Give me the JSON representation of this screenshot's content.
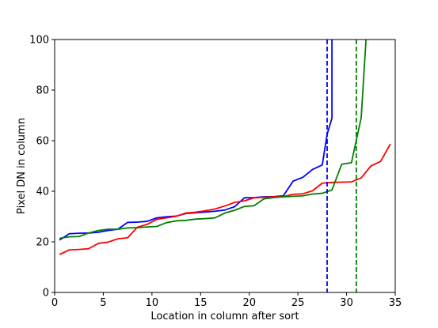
{
  "chart_data": {
    "type": "line",
    "xlabel": "Location in column after sort",
    "ylabel": "Pixel DN in column",
    "xlim": [
      0,
      35
    ],
    "ylim": [
      0,
      100
    ],
    "xticks": [
      0,
      5,
      10,
      15,
      20,
      25,
      30,
      35
    ],
    "yticks": [
      0,
      20,
      40,
      60,
      80,
      100
    ],
    "grid": false,
    "series": [
      {
        "color": "#0000ff",
        "x": [
          0.5,
          1.5,
          2.5,
          3.5,
          4.5,
          5.5,
          6.5,
          7.5,
          8.5,
          9.5,
          10.5,
          11.5,
          12.5,
          13.5,
          14.5,
          15.5,
          16.5,
          17.5,
          18.5,
          19.5,
          20.5,
          21.5,
          22.5,
          23.5,
          24.5,
          25.5,
          26.5,
          27.5,
          28.0,
          28.5,
          28.5
        ],
        "y": [
          20.7,
          23.2,
          23.4,
          23.5,
          23.8,
          24.5,
          25.0,
          27.7,
          27.8,
          28.1,
          29.5,
          29.9,
          30.2,
          31.2,
          31.5,
          31.8,
          32.1,
          32.6,
          33.9,
          37.4,
          37.5,
          37.8,
          37.9,
          38.2,
          44.0,
          45.5,
          48.6,
          50.4,
          62.5,
          69.0,
          100
        ]
      },
      {
        "color": "#ff0000",
        "x": [
          0.5,
          1.5,
          2.5,
          3.5,
          4.5,
          5.5,
          6.5,
          7.5,
          8.5,
          9.5,
          10.5,
          11.5,
          12.5,
          13.5,
          14.5,
          15.5,
          16.5,
          17.5,
          18.5,
          19.5,
          20.5,
          21.5,
          22.5,
          23.5,
          24.5,
          25.5,
          26.5,
          27.5,
          28.5,
          29.5,
          30.5,
          31.5,
          32.5,
          33.5,
          34.5
        ],
        "y": [
          15.0,
          16.8,
          17.0,
          17.3,
          19.4,
          19.9,
          21.2,
          21.6,
          25.8,
          26.9,
          28.9,
          29.5,
          30.1,
          31.4,
          31.7,
          32.3,
          33.0,
          34.2,
          35.6,
          36.2,
          37.4,
          37.6,
          37.8,
          37.9,
          38.8,
          39.0,
          40.2,
          43.2,
          43.5,
          43.6,
          43.7,
          45.3,
          50.0,
          51.8,
          58.7
        ]
      },
      {
        "color": "#008000",
        "x": [
          0.5,
          1.5,
          2.5,
          3.5,
          4.5,
          5.5,
          6.5,
          7.5,
          8.5,
          9.5,
          10.5,
          11.5,
          12.5,
          13.5,
          14.5,
          15.5,
          16.5,
          17.5,
          18.5,
          19.5,
          20.5,
          21.5,
          22.5,
          23.5,
          24.5,
          25.5,
          26.5,
          27.5,
          28.5,
          29.5,
          30.5,
          31.5,
          32.0
        ],
        "y": [
          21.4,
          22.0,
          22.1,
          23.5,
          24.5,
          25.0,
          25.0,
          25.5,
          25.6,
          25.9,
          26.1,
          27.6,
          28.3,
          28.5,
          29.0,
          29.2,
          29.5,
          31.4,
          32.5,
          34.0,
          34.3,
          37.0,
          37.5,
          37.8,
          38.0,
          38.2,
          38.9,
          39.2,
          40.5,
          50.7,
          51.3,
          69.0,
          100
        ]
      }
    ],
    "vlines": [
      {
        "x": 28,
        "color": "#0000ff",
        "style": "dashed"
      },
      {
        "x": 31,
        "color": "#008000",
        "style": "dashed"
      }
    ]
  }
}
